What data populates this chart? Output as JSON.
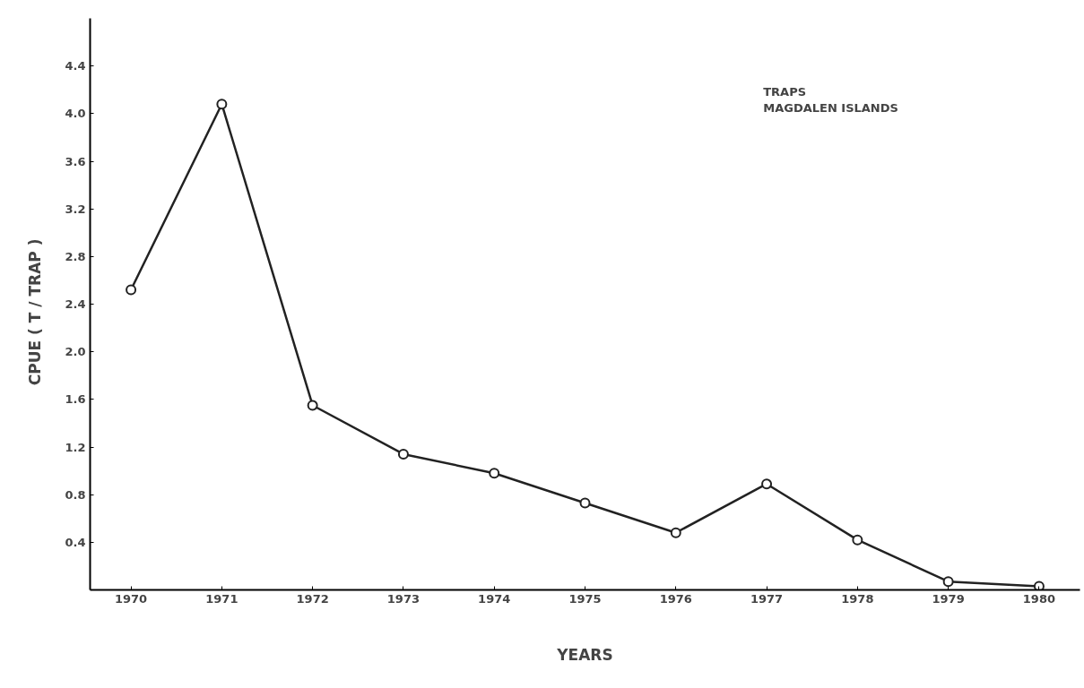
{
  "chart_data": {
    "type": "line",
    "xlabel": "YEARS",
    "ylabel": "CPUE    ( T / TRAP )",
    "x": [
      1970,
      1971,
      1972,
      1973,
      1974,
      1975,
      1976,
      1977,
      1978,
      1979,
      1980
    ],
    "series": [
      {
        "color": "#222222",
        "values": [
          2.52,
          4.08,
          1.55,
          1.14,
          0.98,
          0.73,
          0.48,
          0.89,
          0.42,
          0.07,
          0.03
        ]
      }
    ],
    "xlim": [
      1969.55,
      1980.45
    ],
    "ylim": [
      0,
      4.8
    ],
    "xticks": [
      1970,
      1971,
      1972,
      1973,
      1974,
      1975,
      1976,
      1977,
      1978,
      1979,
      1980
    ],
    "yticks": [
      0.4,
      0.8,
      1.2,
      1.6,
      {
        "value": 2.0,
        "label": "2.0"
      },
      2.4,
      2.8,
      3.2,
      3.6,
      {
        "value": 4.0,
        "label": "4.0"
      },
      4.4
    ],
    "annotations": [
      "TRAPS",
      "MAGDALEN  ISLANDS"
    ],
    "marker": "circle",
    "line_style": "solid",
    "grid": false
  }
}
